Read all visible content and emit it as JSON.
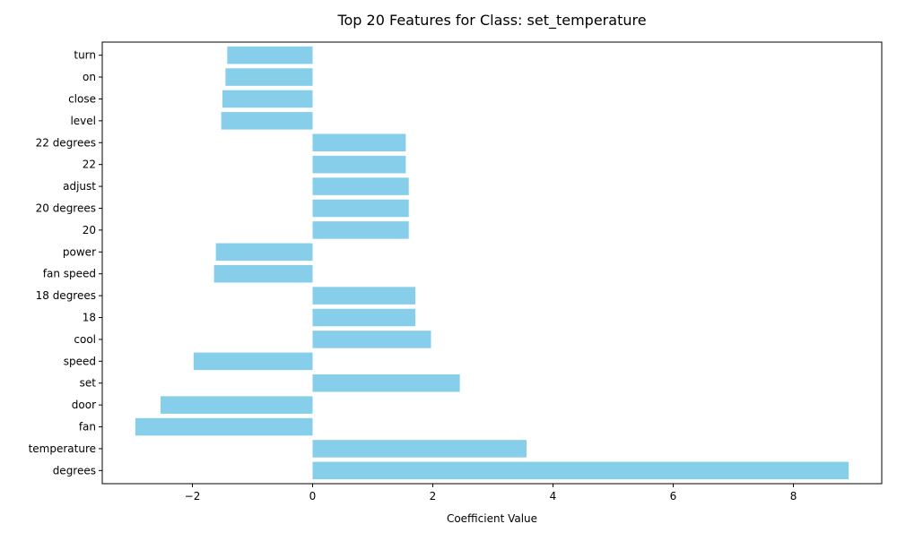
{
  "chart_data": {
    "type": "bar",
    "orientation": "horizontal",
    "title": "Top 20 Features for Class: set_temperature",
    "xlabel": "Coefficient Value",
    "ylabel": "",
    "categories": [
      "degrees",
      "temperature",
      "fan",
      "door",
      "set",
      "speed",
      "cool",
      "18",
      "18 degrees",
      "fan speed",
      "power",
      "20",
      "20 degrees",
      "adjust",
      "22",
      "22 degrees",
      "level",
      "close",
      "on",
      "turn"
    ],
    "values": [
      8.92,
      3.56,
      -2.95,
      -2.53,
      2.45,
      -1.98,
      1.97,
      1.71,
      1.71,
      -1.64,
      -1.61,
      1.6,
      1.6,
      1.6,
      1.55,
      1.55,
      -1.52,
      -1.5,
      -1.45,
      -1.42
    ],
    "xlim": [
      -3.5,
      9.47
    ],
    "xticks": [
      -2,
      0,
      2,
      4,
      6,
      8
    ],
    "xtick_labels": [
      "−2",
      "0",
      "2",
      "4",
      "6",
      "8"
    ],
    "bar_color": "#87ceeb",
    "grid": false
  }
}
